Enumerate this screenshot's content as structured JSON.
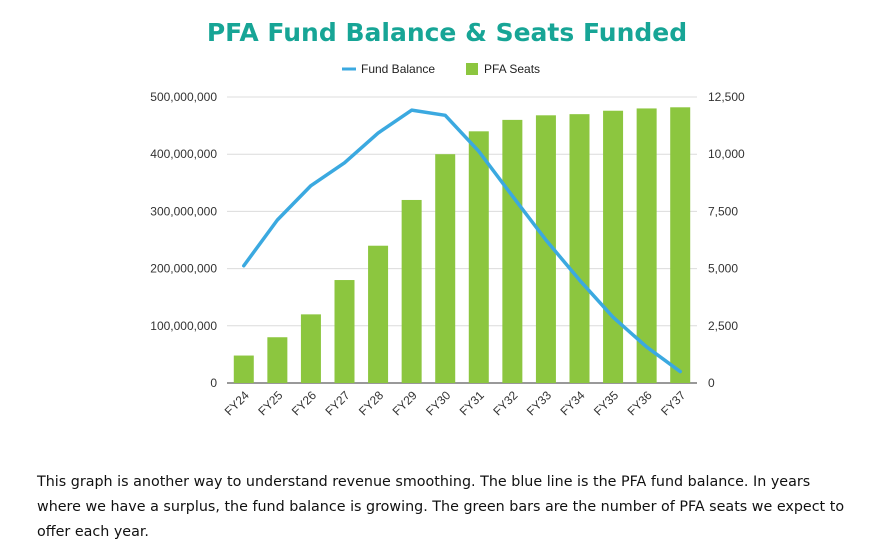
{
  "chart_data": {
    "type": "bar",
    "title": "PFA Fund Balance & Seats Funded",
    "categories": [
      "FY24",
      "FY25",
      "FY26",
      "FY27",
      "FY28",
      "FY29",
      "FY30",
      "FY31",
      "FY32",
      "FY33",
      "FY34",
      "FY35",
      "FY36",
      "FY37"
    ],
    "series": [
      {
        "name": "Fund Balance",
        "type": "line",
        "axis": "left",
        "color": "#3ba9e0",
        "values": [
          205000000,
          285000000,
          345000000,
          385000000,
          437000000,
          477000000,
          468000000,
          405000000,
          327000000,
          250000000,
          180000000,
          115000000,
          63000000,
          20000000
        ]
      },
      {
        "name": "PFA Seats",
        "type": "bar",
        "axis": "right",
        "color": "#8cc63f",
        "values": [
          1200,
          2000,
          3000,
          4500,
          6000,
          8000,
          10000,
          11000,
          11500,
          11700,
          11750,
          11900,
          12000,
          12050
        ]
      }
    ],
    "y_left": {
      "ylim": [
        0,
        500000000
      ],
      "ticks": [
        "0",
        "100,000,000",
        "200,000,000",
        "300,000,000",
        "400,000,000",
        "500,000,000"
      ]
    },
    "y_right": {
      "ylim": [
        0,
        12500
      ],
      "ticks": [
        "0",
        "2,500",
        "5,000",
        "7,500",
        "10,000",
        "12,500"
      ]
    },
    "grid": true,
    "legend_position": "top-center"
  },
  "caption": "This graph is another way to understand revenue smoothing. The blue line is the PFA fund balance. In years where we have a surplus, the fund balance is growing. The green bars are the number of PFA seats we expect to offer each year."
}
